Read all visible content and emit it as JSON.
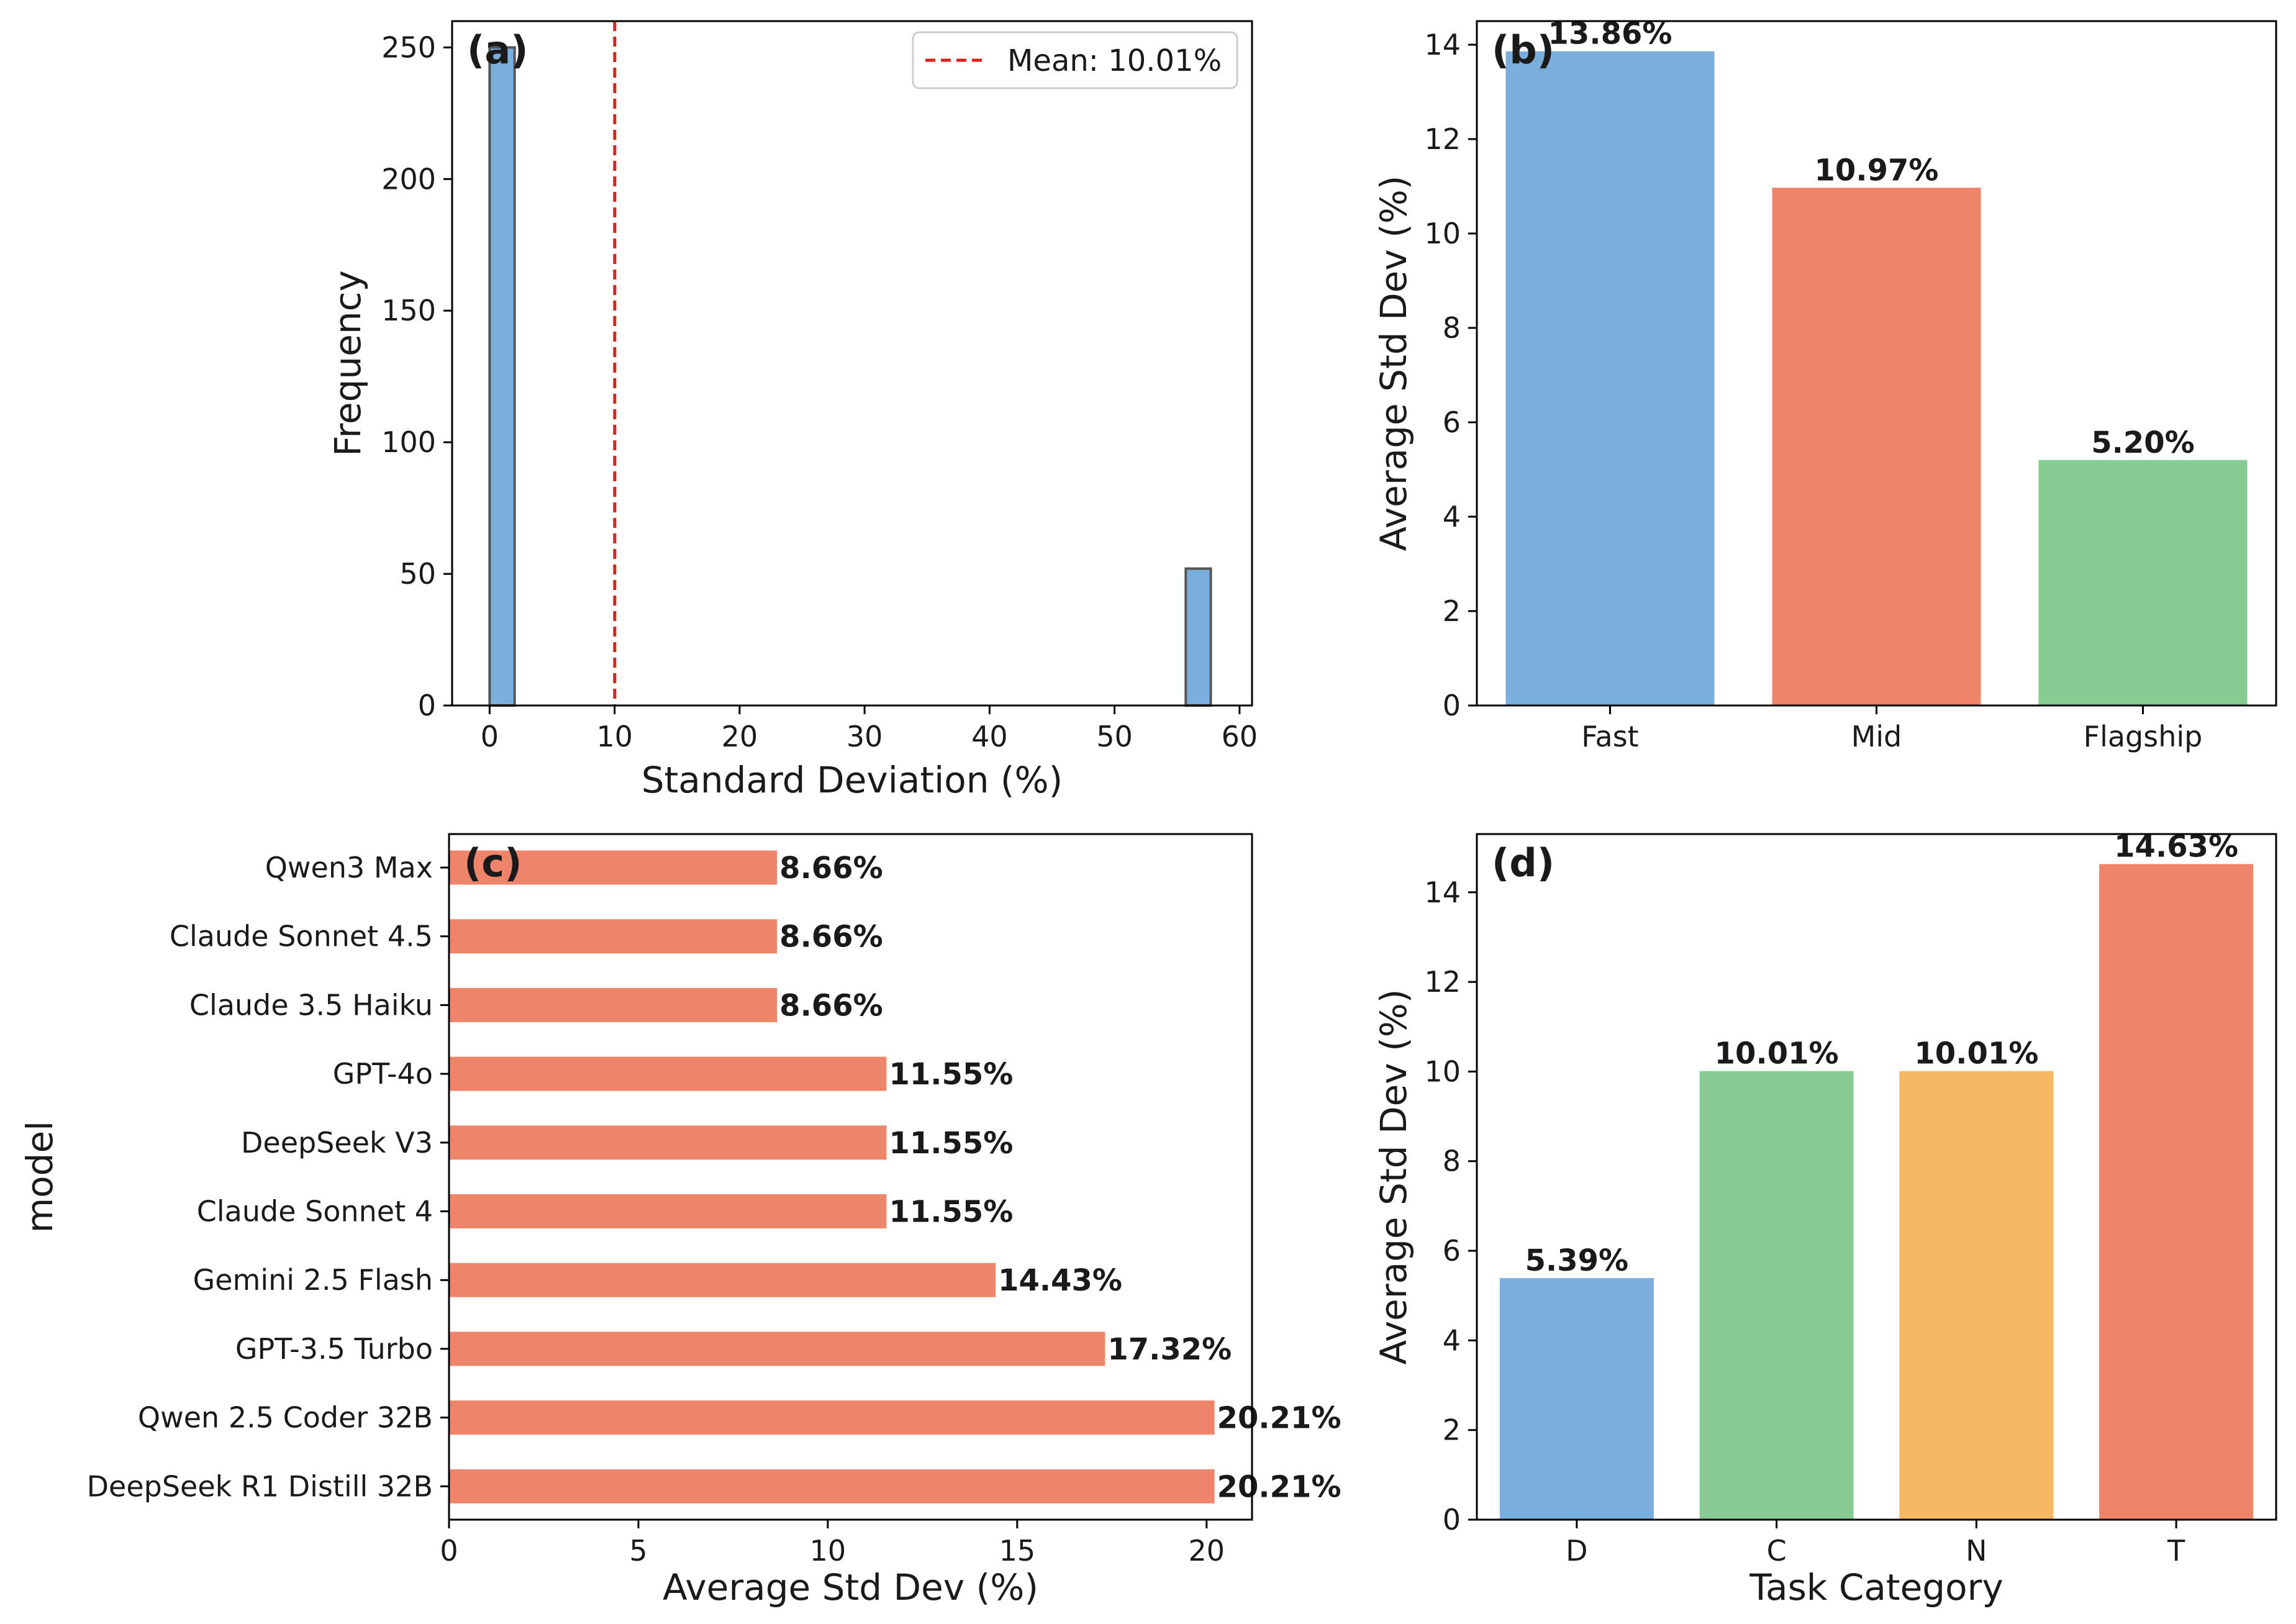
{
  "figure": {
    "chart_data": [
      {
        "type": "bar",
        "subtype": "histogram",
        "panel_label": "(a)",
        "xlabel": "Standard Deviation (%)",
        "ylabel": "Frequency",
        "xlim": [
          -3,
          61
        ],
        "ylim": [
          0,
          260
        ],
        "xticks": [
          "0",
          "10",
          "20",
          "30",
          "40",
          "50",
          "60"
        ],
        "yticks": [
          "0",
          "50",
          "100",
          "150",
          "200",
          "250"
        ],
        "bins": [
          {
            "start": 0,
            "end": 2,
            "count": 250
          },
          {
            "start": 55.7,
            "end": 57.7,
            "count": 52
          }
        ],
        "mean_line": {
          "value": 10.01,
          "color": "#e0201b",
          "label": "Mean: 10.01%"
        },
        "bar_color": "#7aaedc",
        "edge_color": "#555555",
        "legend_position": "top-right"
      },
      {
        "type": "bar",
        "panel_label": "(b)",
        "xlabel": "",
        "ylabel": "Average Std Dev (%)",
        "ylim": [
          0,
          14.5
        ],
        "yticks": [
          "0",
          "2",
          "4",
          "6",
          "8",
          "10",
          "12",
          "14"
        ],
        "categories": [
          "Fast",
          "Mid",
          "Flagship"
        ],
        "values": [
          13.86,
          10.97,
          5.2
        ],
        "labels": [
          "13.86%",
          "10.97%",
          "5.20%"
        ],
        "colors": [
          "#7aaedc",
          "#ee846a",
          "#87cb92"
        ]
      },
      {
        "type": "bar",
        "orientation": "horizontal",
        "panel_label": "(c)",
        "xlabel": "Average Std Dev (%)",
        "ylabel": "model",
        "xlim": [
          0,
          21.2
        ],
        "xticks": [
          "0",
          "5",
          "10",
          "15",
          "20"
        ],
        "categories": [
          "Qwen3 Max",
          "Claude Sonnet 4.5",
          "Claude 3.5 Haiku",
          "GPT-4o",
          "DeepSeek V3",
          "Claude Sonnet 4",
          "Gemini 2.5 Flash",
          "GPT-3.5 Turbo",
          "Qwen 2.5 Coder 32B",
          "DeepSeek R1 Distill 32B"
        ],
        "values": [
          8.66,
          8.66,
          8.66,
          11.55,
          11.55,
          11.55,
          14.43,
          17.32,
          20.21,
          20.21
        ],
        "labels": [
          "8.66%",
          "8.66%",
          "8.66%",
          "11.55%",
          "11.55%",
          "11.55%",
          "14.43%",
          "17.32%",
          "20.21%",
          "20.21%"
        ],
        "bar_color": "#ee846a"
      },
      {
        "type": "bar",
        "panel_label": "(d)",
        "xlabel": "Task Category",
        "ylabel": "Average Std Dev (%)",
        "ylim": [
          0,
          15.3
        ],
        "yticks": [
          "0",
          "2",
          "4",
          "6",
          "8",
          "10",
          "12",
          "14"
        ],
        "categories": [
          "D",
          "C",
          "N",
          "T"
        ],
        "values": [
          5.39,
          10.01,
          10.01,
          14.63
        ],
        "labels": [
          "5.39%",
          "10.01%",
          "10.01%",
          "14.63%"
        ],
        "colors": [
          "#7aaedc",
          "#87cb92",
          "#f7b866",
          "#ee846a"
        ]
      }
    ]
  }
}
